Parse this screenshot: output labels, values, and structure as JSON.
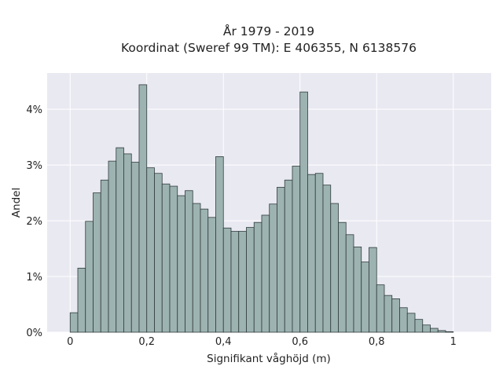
{
  "chart_data": {
    "type": "bar",
    "title": "År 1979 - 2019",
    "subtitle": "Koordinat (Sweref 99 TM): E 406355, N 6138576",
    "xlabel": "Signifikant våghöjd (m)",
    "ylabel": "Andel",
    "x_ticks": [
      "0",
      "0,2",
      "0,4",
      "0,6",
      "0,8",
      "1"
    ],
    "x_tick_values": [
      0,
      0.2,
      0.4,
      0.6,
      0.8,
      1.0
    ],
    "y_ticks": [
      "0%",
      "1%",
      "2%",
      "3%",
      "4%"
    ],
    "y_tick_values": [
      0,
      0.01,
      0.02,
      0.03,
      0.04
    ],
    "xlim": [
      -0.06,
      1.099
    ],
    "ylim": [
      0,
      0.0465
    ],
    "bin_width": 0.02,
    "bin_starts": [
      0.0,
      0.02,
      0.04,
      0.06,
      0.08,
      0.1,
      0.12,
      0.14,
      0.16,
      0.18,
      0.2,
      0.22,
      0.24,
      0.26,
      0.28,
      0.3,
      0.32,
      0.34,
      0.36,
      0.38,
      0.4,
      0.42,
      0.44,
      0.46,
      0.48,
      0.5,
      0.52,
      0.54,
      0.56,
      0.58,
      0.6,
      0.62,
      0.64,
      0.66,
      0.68,
      0.7,
      0.72,
      0.74,
      0.76,
      0.78,
      0.8,
      0.82,
      0.84,
      0.86,
      0.88,
      0.9,
      0.92,
      0.94,
      0.96,
      0.98,
      1.0,
      1.02
    ],
    "values": [
      0.0035,
      0.0115,
      0.0199,
      0.025,
      0.0273,
      0.0307,
      0.0331,
      0.032,
      0.0305,
      0.0444,
      0.0295,
      0.0285,
      0.0266,
      0.0262,
      0.0245,
      0.0254,
      0.0231,
      0.0221,
      0.0206,
      0.0315,
      0.0187,
      0.0181,
      0.0181,
      0.0188,
      0.0197,
      0.021,
      0.023,
      0.026,
      0.0273,
      0.0298,
      0.0431,
      0.0283,
      0.0285,
      0.0264,
      0.0231,
      0.0197,
      0.0175,
      0.0153,
      0.0126,
      0.0152,
      0.0085,
      0.0066,
      0.006,
      0.0044,
      0.0034,
      0.0023,
      0.0013,
      0.0007,
      0.0003,
      0.0001,
      0.0,
      0.0
    ],
    "bar_color": "#9db3b2",
    "edge_color": "#2f3b3b",
    "plot_background": "#e9e9f2",
    "grid": true
  }
}
